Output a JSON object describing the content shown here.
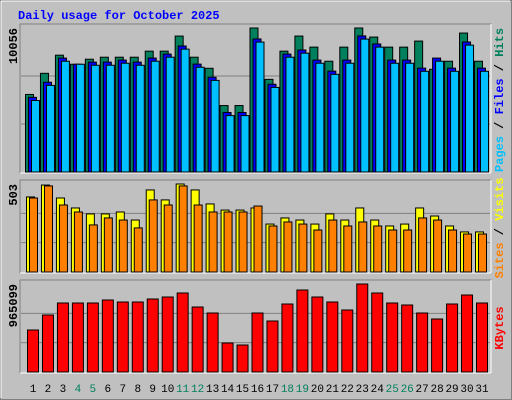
{
  "chart_data": {
    "title": "Daily usage for October 2025",
    "categories": [
      "1",
      "2",
      "3",
      "4",
      "5",
      "6",
      "7",
      "8",
      "9",
      "10",
      "11",
      "12",
      "13",
      "14",
      "15",
      "16",
      "17",
      "18",
      "19",
      "20",
      "21",
      "22",
      "23",
      "24",
      "25",
      "26",
      "27",
      "28",
      "29",
      "30",
      "31"
    ],
    "weekend_indices": [
      3,
      4,
      10,
      11,
      17,
      18,
      24,
      25
    ],
    "weekend_color": "#00805c",
    "legend_separator": " / ",
    "panels": [
      {
        "type": "bar",
        "ylim": [
          0,
          10056
        ],
        "yticks": [
          10056
        ],
        "grid_lines": [
          3352,
          6704
        ],
        "series": [
          {
            "name": "Hits",
            "color": "#00805c",
            "values": [
              5415,
              6891,
              8157,
              7524,
              7876,
              8016,
              8016,
              8016,
              8438,
              8438,
              9493,
              8016,
              7243,
              4641,
              4641,
              10056,
              6469,
              8438,
              9493,
              8720,
              7735,
              8720,
              10056,
              9423,
              8720,
              8720,
              9142,
              7173,
              7735,
              9704,
              7735
            ]
          },
          {
            "name": "Files",
            "color": "#0000ff",
            "values": [
              5213,
              6268,
              7955,
              7524,
              7674,
              7674,
              7815,
              7674,
              7955,
              8236,
              8799,
              7533,
              6619,
              4158,
              4158,
              9291,
              6127,
              8236,
              8518,
              7815,
              7041,
              7815,
              9502,
              8940,
              7815,
              7815,
              7252,
              7955,
              7252,
              9080,
              7252
            ]
          },
          {
            "name": "Pages",
            "color": "#00c0ff",
            "values": [
              4993,
              6048,
              7735,
              7524,
              7454,
              7454,
              7595,
              7454,
              7735,
              8016,
              8579,
              7313,
              6399,
              3938,
              3938,
              9071,
              5907,
              8016,
              8298,
              7595,
              6821,
              7595,
              9282,
              8720,
              7595,
              7595,
              7032,
              7735,
              7032,
              8860,
              7032
            ]
          }
        ]
      },
      {
        "type": "bar",
        "ylim": [
          0,
          503
        ],
        "yticks": [
          503
        ],
        "grid_lines": [
          168,
          335
        ],
        "series": [
          {
            "name": "Visits",
            "color": "#ffff00",
            "values": [
              429,
              497,
              423,
              366,
              332,
              332,
              343,
              297,
              469,
              412,
              503,
              469,
              389,
              354,
              354,
              366,
              274,
              309,
              297,
              274,
              332,
              297,
              366,
              297,
              263,
              274,
              366,
              320,
              263,
              229,
              229
            ]
          },
          {
            "name": "Sites",
            "color": "#ff8000",
            "values": [
              423,
              492,
              383,
              343,
              269,
              309,
              297,
              252,
              412,
              383,
              492,
              383,
              343,
              343,
              343,
              377,
              263,
              286,
              274,
              240,
              297,
              263,
              286,
              263,
              240,
              240,
              309,
              297,
              240,
              217,
              217
            ]
          }
        ]
      },
      {
        "type": "bar",
        "ylim": [
          0,
          965099
        ],
        "yticks": [
          965099
        ],
        "grid_lines": [
          321700,
          643399
        ],
        "series": [
          {
            "name": "KBytes",
            "color": "#ff0000",
            "values": [
              460614,
              625119,
              756723,
              756723,
              756723,
              789624,
              767690,
              767690,
              800591,
              822525,
              866393,
              712855,
              647053,
              318043,
              296109,
              647053,
              559317,
              745756,
              899294,
              822525,
              767690,
              679954,
              965099,
              866393,
              756723,
              734789,
              647053,
              581251,
              745756,
              844459,
              756723
            ]
          }
        ]
      }
    ]
  }
}
